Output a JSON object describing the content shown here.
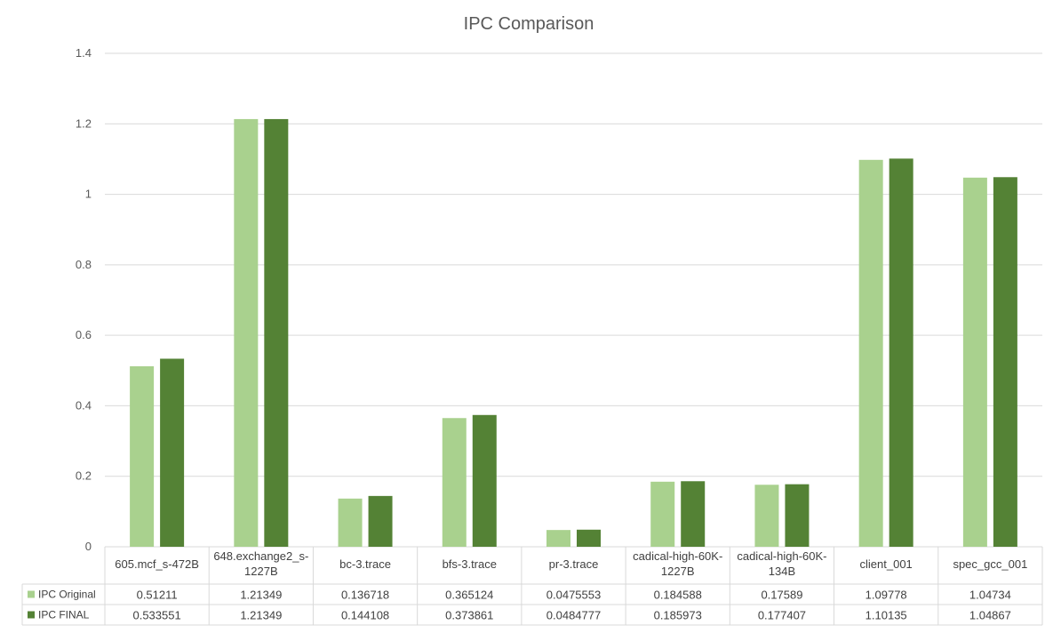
{
  "chart_data": {
    "type": "bar",
    "title": "IPC Comparison",
    "categories": [
      [
        "605.mcf_s-472B"
      ],
      [
        "648.exchange2_s-",
        "1227B"
      ],
      [
        "bc-3.trace"
      ],
      [
        "bfs-3.trace"
      ],
      [
        "pr-3.trace"
      ],
      [
        "cadical-high-60K-",
        "1227B"
      ],
      [
        "cadical-high-60K-",
        "134B"
      ],
      [
        "client_001"
      ],
      [
        "spec_gcc_001"
      ]
    ],
    "series": [
      {
        "name": "IPC Original",
        "color": "#a9d18e",
        "values": [
          0.51211,
          1.21349,
          0.136718,
          0.365124,
          0.0475553,
          0.184588,
          0.17589,
          1.09778,
          1.04734
        ],
        "labels": [
          "0.51211",
          "1.21349",
          "0.136718",
          "0.365124",
          "0.0475553",
          "0.184588",
          "0.17589",
          "1.09778",
          "1.04734"
        ]
      },
      {
        "name": "IPC FINAL",
        "color": "#548235",
        "values": [
          0.533551,
          1.21349,
          0.144108,
          0.373861,
          0.0484777,
          0.185973,
          0.177407,
          1.10135,
          1.04867
        ],
        "labels": [
          "0.533551",
          "1.21349",
          "0.144108",
          "0.373861",
          "0.0484777",
          "0.185973",
          "0.177407",
          "1.10135",
          "1.04867"
        ]
      }
    ],
    "yticks": [
      "0",
      "0.2",
      "0.4",
      "0.6",
      "0.8",
      "1",
      "1.2",
      "1.4"
    ],
    "ylim": [
      0,
      1.4
    ],
    "grid": true,
    "legend": "data-table"
  }
}
